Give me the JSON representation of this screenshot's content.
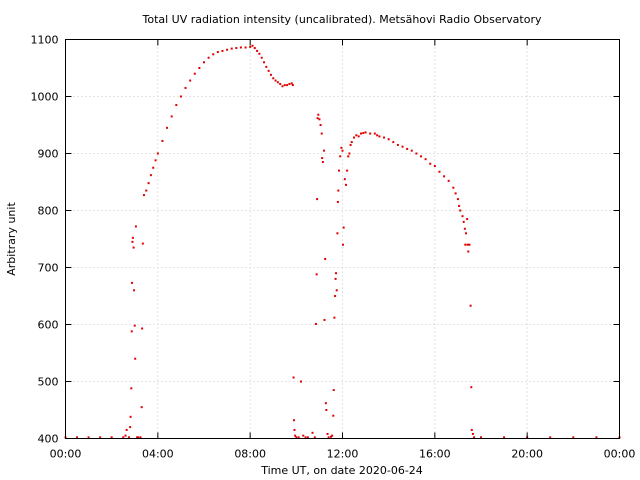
{
  "chart_data": {
    "type": "scatter",
    "title": "Total UV radiation intensity (uncalibrated). Metsähovi Radio Observatory",
    "xlabel": "Time UT, on date 2020-06-24",
    "ylabel": "Arbitrary unit",
    "x_unit": "hours UT",
    "xlim": [
      0,
      24
    ],
    "ylim": [
      400,
      1100
    ],
    "x_ticks": [
      {
        "value": 0,
        "label": "00:00"
      },
      {
        "value": 4,
        "label": "04:00"
      },
      {
        "value": 8,
        "label": "08:00"
      },
      {
        "value": 12,
        "label": "12:00"
      },
      {
        "value": 16,
        "label": "16:00"
      },
      {
        "value": 20,
        "label": "20:00"
      },
      {
        "value": 24,
        "label": "00:00"
      }
    ],
    "y_ticks": [
      400,
      500,
      600,
      700,
      800,
      900,
      1000,
      1100
    ],
    "grid": true,
    "marker_color": "#e00000",
    "series": [
      {
        "points": [
          [
            0.0,
            402
          ],
          [
            0.5,
            402
          ],
          [
            1.0,
            402
          ],
          [
            1.5,
            402
          ],
          [
            2.0,
            402
          ],
          [
            2.5,
            402
          ],
          [
            2.6,
            405
          ],
          [
            2.65,
            415
          ],
          [
            2.75,
            402
          ],
          [
            2.8,
            420
          ],
          [
            2.82,
            438
          ],
          [
            2.85,
            488
          ],
          [
            2.87,
            588
          ],
          [
            2.88,
            673
          ],
          [
            2.9,
            745
          ],
          [
            2.92,
            752
          ],
          [
            2.95,
            735
          ],
          [
            2.97,
            660
          ],
          [
            3.0,
            598
          ],
          [
            3.02,
            540
          ],
          [
            3.05,
            772
          ],
          [
            3.1,
            402
          ],
          [
            3.15,
            402
          ],
          [
            3.25,
            402
          ],
          [
            3.3,
            455
          ],
          [
            3.32,
            593
          ],
          [
            3.35,
            742
          ],
          [
            3.4,
            827
          ],
          [
            3.5,
            835
          ],
          [
            3.6,
            848
          ],
          [
            3.7,
            862
          ],
          [
            3.8,
            875
          ],
          [
            3.9,
            888
          ],
          [
            4.0,
            900
          ],
          [
            4.2,
            922
          ],
          [
            4.4,
            945
          ],
          [
            4.6,
            965
          ],
          [
            4.8,
            985
          ],
          [
            5.0,
            1000
          ],
          [
            5.2,
            1015
          ],
          [
            5.4,
            1028
          ],
          [
            5.6,
            1040
          ],
          [
            5.8,
            1050
          ],
          [
            6.0,
            1060
          ],
          [
            6.2,
            1068
          ],
          [
            6.4,
            1074
          ],
          [
            6.6,
            1078
          ],
          [
            6.8,
            1080
          ],
          [
            7.0,
            1082
          ],
          [
            7.2,
            1084
          ],
          [
            7.4,
            1085
          ],
          [
            7.6,
            1086
          ],
          [
            7.8,
            1086
          ],
          [
            8.0,
            1087
          ],
          [
            8.1,
            1089
          ],
          [
            8.2,
            1085
          ],
          [
            8.3,
            1080
          ],
          [
            8.4,
            1075
          ],
          [
            8.5,
            1068
          ],
          [
            8.6,
            1060
          ],
          [
            8.7,
            1052
          ],
          [
            8.8,
            1045
          ],
          [
            8.9,
            1038
          ],
          [
            9.0,
            1032
          ],
          [
            9.1,
            1028
          ],
          [
            9.2,
            1025
          ],
          [
            9.3,
            1022
          ],
          [
            9.4,
            1018
          ],
          [
            9.5,
            1020
          ],
          [
            9.6,
            1020
          ],
          [
            9.7,
            1022
          ],
          [
            9.8,
            1023
          ],
          [
            9.85,
            1020
          ],
          [
            9.88,
            507
          ],
          [
            9.9,
            432
          ],
          [
            9.92,
            415
          ],
          [
            9.95,
            405
          ],
          [
            10.0,
            402
          ],
          [
            10.1,
            402
          ],
          [
            10.2,
            500
          ],
          [
            10.3,
            405
          ],
          [
            10.4,
            402
          ],
          [
            10.5,
            402
          ],
          [
            10.7,
            410
          ],
          [
            10.8,
            402
          ],
          [
            10.85,
            601
          ],
          [
            10.88,
            688
          ],
          [
            10.9,
            820
          ],
          [
            10.92,
            962
          ],
          [
            10.95,
            968
          ],
          [
            11.0,
            960
          ],
          [
            11.05,
            950
          ],
          [
            11.1,
            935
          ],
          [
            11.12,
            892
          ],
          [
            11.15,
            885
          ],
          [
            11.2,
            905
          ],
          [
            11.22,
            608
          ],
          [
            11.25,
            715
          ],
          [
            11.28,
            462
          ],
          [
            11.3,
            450
          ],
          [
            11.35,
            408
          ],
          [
            11.4,
            402
          ],
          [
            11.5,
            403
          ],
          [
            11.55,
            405
          ],
          [
            11.6,
            440
          ],
          [
            11.62,
            485
          ],
          [
            11.65,
            612
          ],
          [
            11.68,
            650
          ],
          [
            11.7,
            680
          ],
          [
            11.72,
            690
          ],
          [
            11.75,
            660
          ],
          [
            11.78,
            760
          ],
          [
            11.8,
            815
          ],
          [
            11.82,
            835
          ],
          [
            11.85,
            870
          ],
          [
            11.9,
            895
          ],
          [
            11.95,
            910
          ],
          [
            12.0,
            905
          ],
          [
            12.02,
            740
          ],
          [
            12.05,
            770
          ],
          [
            12.1,
            855
          ],
          [
            12.15,
            845
          ],
          [
            12.2,
            870
          ],
          [
            12.25,
            895
          ],
          [
            12.3,
            900
          ],
          [
            12.35,
            915
          ],
          [
            12.4,
            920
          ],
          [
            12.5,
            928
          ],
          [
            12.6,
            932
          ],
          [
            12.7,
            930
          ],
          [
            12.8,
            935
          ],
          [
            12.9,
            936
          ],
          [
            13.0,
            937
          ],
          [
            13.2,
            935
          ],
          [
            13.4,
            935
          ],
          [
            13.5,
            932
          ],
          [
            13.6,
            930
          ],
          [
            13.8,
            928
          ],
          [
            14.0,
            925
          ],
          [
            14.2,
            920
          ],
          [
            14.4,
            915
          ],
          [
            14.6,
            912
          ],
          [
            14.8,
            908
          ],
          [
            15.0,
            905
          ],
          [
            15.2,
            900
          ],
          [
            15.4,
            895
          ],
          [
            15.6,
            890
          ],
          [
            15.8,
            882
          ],
          [
            16.0,
            878
          ],
          [
            16.2,
            868
          ],
          [
            16.4,
            860
          ],
          [
            16.6,
            852
          ],
          [
            16.8,
            840
          ],
          [
            16.9,
            830
          ],
          [
            17.0,
            820
          ],
          [
            17.05,
            808
          ],
          [
            17.1,
            800
          ],
          [
            17.2,
            790
          ],
          [
            17.25,
            780
          ],
          [
            17.3,
            768
          ],
          [
            17.32,
            740
          ],
          [
            17.35,
            760
          ],
          [
            17.4,
            785
          ],
          [
            17.42,
            740
          ],
          [
            17.45,
            728
          ],
          [
            17.5,
            740
          ],
          [
            17.55,
            633
          ],
          [
            17.58,
            490
          ],
          [
            17.6,
            415
          ],
          [
            17.65,
            408
          ],
          [
            17.7,
            402
          ],
          [
            18.0,
            402
          ],
          [
            19.0,
            402
          ],
          [
            20.0,
            402
          ],
          [
            21.0,
            402
          ],
          [
            22.0,
            402
          ],
          [
            23.0,
            402
          ],
          [
            24.0,
            402
          ]
        ]
      }
    ]
  }
}
